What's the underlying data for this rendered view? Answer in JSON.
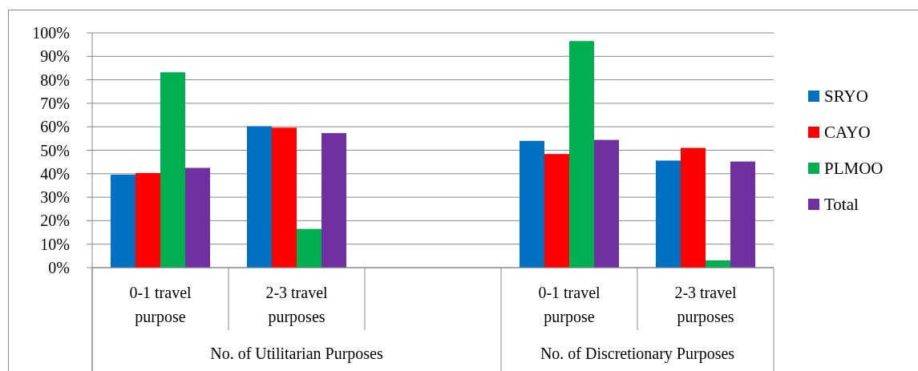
{
  "chart_data": {
    "type": "bar",
    "categories": [
      "0-1 travel purpose",
      "2-3 travel purposes",
      null,
      "0-1 travel purpose",
      "2-3 travel purposes"
    ],
    "series": [
      {
        "name": "SRYO",
        "color": "#0070c0",
        "values": [
          39.6,
          60.2,
          null,
          54.0,
          45.6
        ]
      },
      {
        "name": "CAYO",
        "color": "#ff0000",
        "values": [
          40.3,
          59.6,
          null,
          48.4,
          51.0
        ]
      },
      {
        "name": "PLMOO",
        "color": "#00b050",
        "values": [
          83.2,
          16.5,
          null,
          96.5,
          3.1
        ]
      },
      {
        "name": "Total",
        "color": "#7030a0",
        "values": [
          42.5,
          57.3,
          null,
          54.4,
          45.2
        ]
      }
    ],
    "ylim": [
      0,
      100
    ],
    "yticks": [
      {
        "value": 0,
        "label": "0%"
      },
      {
        "value": 10,
        "label": "10%"
      },
      {
        "value": 20,
        "label": "20%"
      },
      {
        "value": 30,
        "label": "30%"
      },
      {
        "value": 40,
        "label": "40%"
      },
      {
        "value": 50,
        "label": "50%"
      },
      {
        "value": 60,
        "label": "60%"
      },
      {
        "value": 70,
        "label": "70%"
      },
      {
        "value": 80,
        "label": "80%"
      },
      {
        "value": 90,
        "label": "90%"
      },
      {
        "value": 100,
        "label": "100%"
      }
    ],
    "grid": "y",
    "legend": "right",
    "annotations": [
      "No. of Utilitarian Purposes",
      "No. of Discretionary Purposes"
    ]
  }
}
